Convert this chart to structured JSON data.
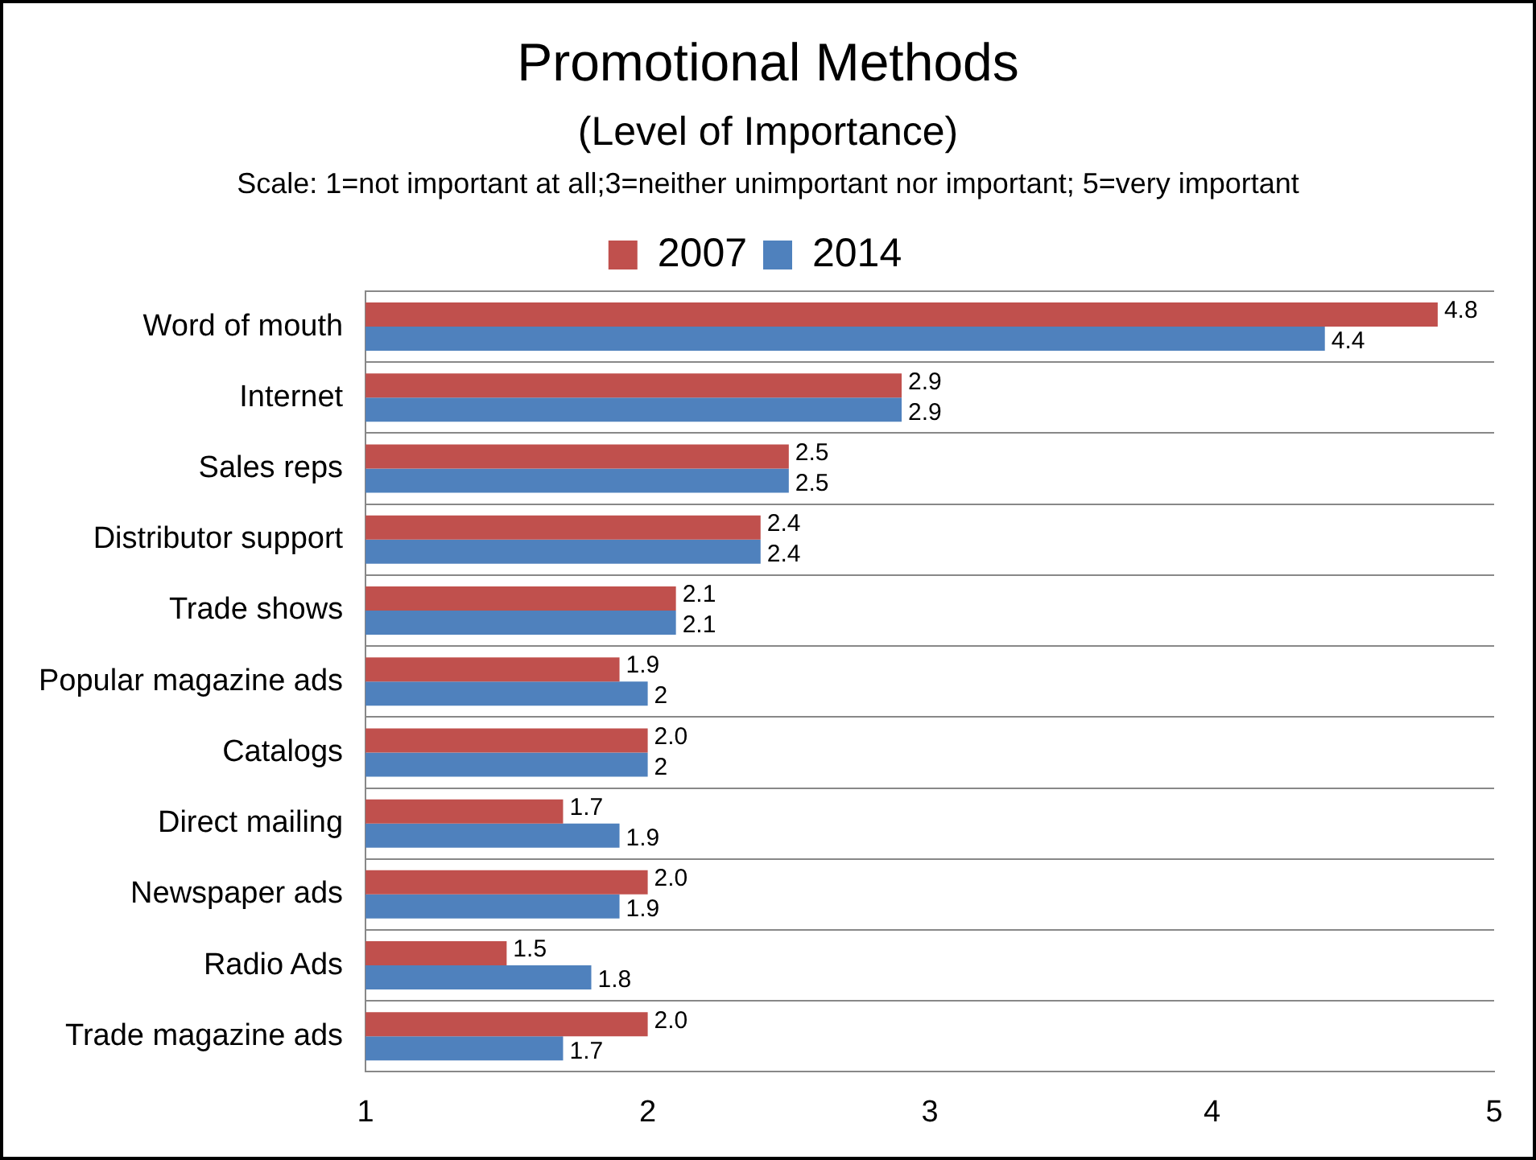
{
  "chart_data": {
    "type": "bar",
    "orientation": "horizontal",
    "title": "Promotional Methods",
    "subtitle": "(Level of Importance)",
    "annotations": [
      "Scale: 1=not important at all;3=neither unimportant nor important; 5=very important"
    ],
    "categories": [
      "Word of mouth",
      "Internet",
      "Sales reps",
      "Distributor support",
      "Trade shows",
      "Popular magazine ads",
      "Catalogs",
      "Direct mailing",
      "Newspaper ads",
      "Radio Ads",
      "Trade magazine ads"
    ],
    "series": [
      {
        "name": "2007",
        "color": "#c0504d",
        "values": [
          4.8,
          2.9,
          2.5,
          2.4,
          2.1,
          1.9,
          2.0,
          1.7,
          2.0,
          1.5,
          2.0
        ],
        "value_labels": [
          "4.8",
          "2.9",
          "2.5",
          "2.4",
          "2.1",
          "1.9",
          "2.0",
          "1.7",
          "2.0",
          "1.5",
          "2.0"
        ]
      },
      {
        "name": "2014",
        "color": "#4f81bd",
        "values": [
          4.4,
          2.9,
          2.5,
          2.4,
          2.1,
          2,
          2,
          1.9,
          1.9,
          1.8,
          1.7
        ],
        "value_labels": [
          "4.4",
          "2.9",
          "2.5",
          "2.4",
          "2.1",
          "2",
          "2",
          "1.9",
          "1.9",
          "1.8",
          "1.7"
        ]
      }
    ],
    "xlim": [
      1,
      5
    ],
    "xticks": [
      1,
      2,
      3,
      4,
      5
    ],
    "grid": "y",
    "legend": "top"
  }
}
